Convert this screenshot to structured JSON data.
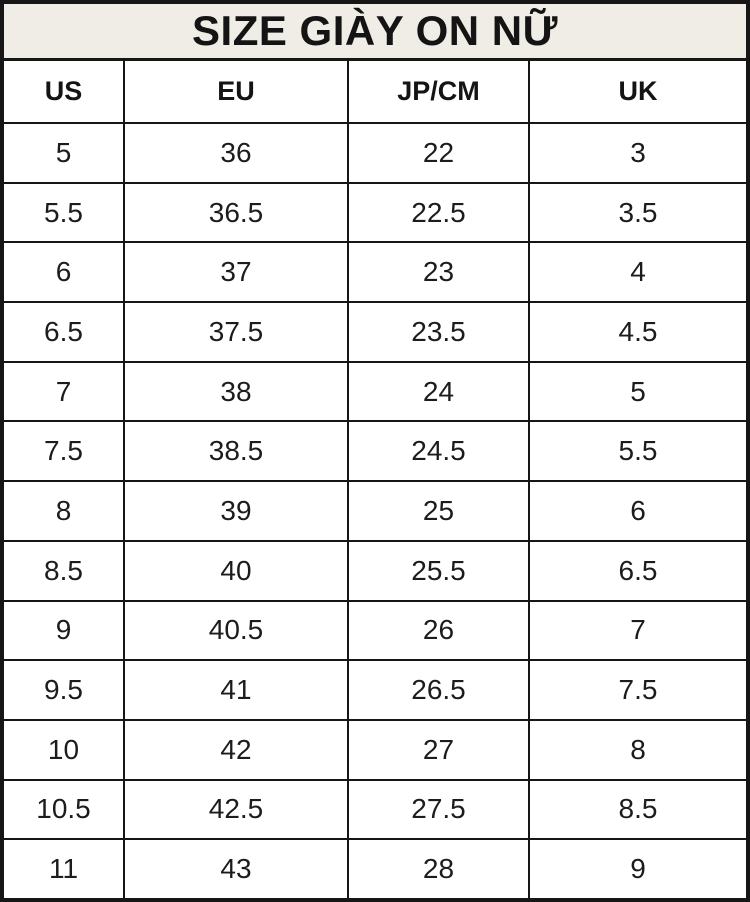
{
  "title": "SIZE GIÀY ON NỮ",
  "table": {
    "headers": [
      "US",
      "EU",
      "JP/CM",
      "UK"
    ],
    "rows": [
      [
        "5",
        "36",
        "22",
        "3"
      ],
      [
        "5.5",
        "36.5",
        "22.5",
        "3.5"
      ],
      [
        "6",
        "37",
        "23",
        "4"
      ],
      [
        "6.5",
        "37.5",
        "23.5",
        "4.5"
      ],
      [
        "7",
        "38",
        "24",
        "5"
      ],
      [
        "7.5",
        "38.5",
        "24.5",
        "5.5"
      ],
      [
        "8",
        "39",
        "25",
        "6"
      ],
      [
        "8.5",
        "40",
        "25.5",
        "6.5"
      ],
      [
        "9",
        "40.5",
        "26",
        "7"
      ],
      [
        "9.5",
        "41",
        "26.5",
        "7.5"
      ],
      [
        "10",
        "42",
        "27",
        "8"
      ],
      [
        "10.5",
        "42.5",
        "27.5",
        "8.5"
      ],
      [
        "11",
        "43",
        "28",
        "9"
      ]
    ]
  },
  "colors": {
    "title_background": "#f0ede6",
    "border": "#161616",
    "cell_background": "#ffffff",
    "text": "#1c1c1c"
  }
}
